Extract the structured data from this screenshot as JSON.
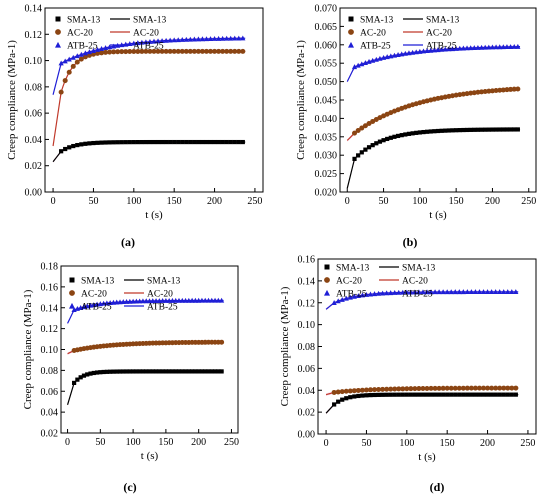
{
  "colors": {
    "SMA-13": "#000000",
    "AC-20": "#8b4513",
    "ATB-25": "#1f1fd6",
    "fit_band": "#f2b8d8",
    "model_line_AC-20": "#c0392b"
  },
  "legend": {
    "model_suffix": ""
  },
  "chart_data": [
    {
      "type": "scatter",
      "panel_label": "(a)",
      "xlabel": "t (s)",
      "ylabel": "Creep compliance (MPa-1)",
      "xlim": [
        -10,
        260
      ],
      "ylim": [
        0,
        0.14
      ],
      "x_ticks": [
        0,
        50,
        100,
        150,
        200,
        250
      ],
      "y_ticks": [
        0.0,
        0.02,
        0.04,
        0.06,
        0.08,
        0.1,
        0.12,
        0.14
      ],
      "y_tick_labels": [
        "0.00",
        "0.02",
        "0.04",
        "0.06",
        "0.08",
        "0.10",
        "0.12",
        "0.14"
      ],
      "legend_position": "top-left",
      "series": [
        {
          "name": "SMA-13",
          "marker": "square",
          "y_start": 0.023,
          "y_first": 0.031,
          "y_end": 0.038,
          "tau": 18
        },
        {
          "name": "AC-20",
          "marker": "circle",
          "y_start": 0.035,
          "y_first": 0.076,
          "y_end": 0.107,
          "tau": 15
        },
        {
          "name": "ATB-25",
          "marker": "triangle",
          "y_start": 0.074,
          "y_first": 0.098,
          "y_end": 0.117,
          "tau": 60
        }
      ]
    },
    {
      "type": "scatter",
      "panel_label": "(b)",
      "xlabel": "t (s)",
      "ylabel": "Creep compliance (MPa-1)",
      "xlim": [
        -10,
        260
      ],
      "ylim": [
        0.02,
        0.07
      ],
      "x_ticks": [
        0,
        50,
        100,
        150,
        200,
        250
      ],
      "y_ticks": [
        0.02,
        0.025,
        0.03,
        0.035,
        0.04,
        0.045,
        0.05,
        0.055,
        0.06,
        0.065,
        0.07
      ],
      "y_tick_labels": [
        "0.020",
        "0.025",
        "0.030",
        "0.035",
        "0.040",
        "0.045",
        "0.050",
        "0.055",
        "0.060",
        "0.065",
        "0.070"
      ],
      "legend_position": "top-left",
      "series": [
        {
          "name": "SMA-13",
          "marker": "square",
          "y_start": 0.021,
          "y_first": 0.029,
          "y_end": 0.037,
          "tau": 40
        },
        {
          "name": "AC-20",
          "marker": "circle",
          "y_start": 0.034,
          "y_first": 0.036,
          "y_end": 0.048,
          "tau": 90
        },
        {
          "name": "ATB-25",
          "marker": "triangle",
          "y_start": 0.05,
          "y_first": 0.054,
          "y_end": 0.0595,
          "tau": 70
        }
      ]
    },
    {
      "type": "scatter",
      "panel_label": "(c)",
      "xlabel": "t (s)",
      "ylabel": "Creep compliance (MPa-1)",
      "xlim": [
        -10,
        260
      ],
      "ylim": [
        0.02,
        0.18
      ],
      "x_ticks": [
        0,
        50,
        100,
        150,
        200,
        250
      ],
      "y_ticks": [
        0.02,
        0.04,
        0.06,
        0.08,
        0.1,
        0.12,
        0.14,
        0.16,
        0.18
      ],
      "y_tick_labels": [
        "0.02",
        "0.04",
        "0.06",
        "0.08",
        "0.10",
        "0.12",
        "0.14",
        "0.16",
        "0.18"
      ],
      "legend_position": "top-left",
      "series": [
        {
          "name": "SMA-13",
          "marker": "square",
          "y_start": 0.047,
          "y_first": 0.068,
          "y_end": 0.079,
          "tau": 15
        },
        {
          "name": "AC-20",
          "marker": "circle",
          "y_start": 0.096,
          "y_first": 0.099,
          "y_end": 0.107,
          "tau": 60
        },
        {
          "name": "ATB-25",
          "marker": "triangle",
          "y_start": 0.125,
          "y_first": 0.138,
          "y_end": 0.147,
          "tau": 40
        }
      ]
    },
    {
      "type": "scatter",
      "panel_label": "(d)",
      "xlabel": "t (s)",
      "ylabel": "Creep compliance (MPa-1)",
      "xlim": [
        -10,
        260
      ],
      "ylim": [
        0.0,
        0.16
      ],
      "x_ticks": [
        0,
        50,
        100,
        150,
        200,
        250
      ],
      "y_ticks": [
        0.0,
        0.02,
        0.04,
        0.06,
        0.08,
        0.1,
        0.12,
        0.14,
        0.16
      ],
      "y_tick_labels": [
        "0.00",
        "0.02",
        "0.04",
        "0.06",
        "0.08",
        "0.10",
        "0.12",
        "0.14",
        "0.16"
      ],
      "legend_position": "top-left",
      "series": [
        {
          "name": "SMA-13",
          "marker": "square",
          "y_start": 0.019,
          "y_first": 0.027,
          "y_end": 0.036,
          "tau": 15
        },
        {
          "name": "AC-20",
          "marker": "circle",
          "y_start": 0.036,
          "y_first": 0.038,
          "y_end": 0.042,
          "tau": 50
        },
        {
          "name": "ATB-25",
          "marker": "triangle",
          "y_start": 0.114,
          "y_first": 0.12,
          "y_end": 0.13,
          "tau": 30
        }
      ]
    }
  ]
}
